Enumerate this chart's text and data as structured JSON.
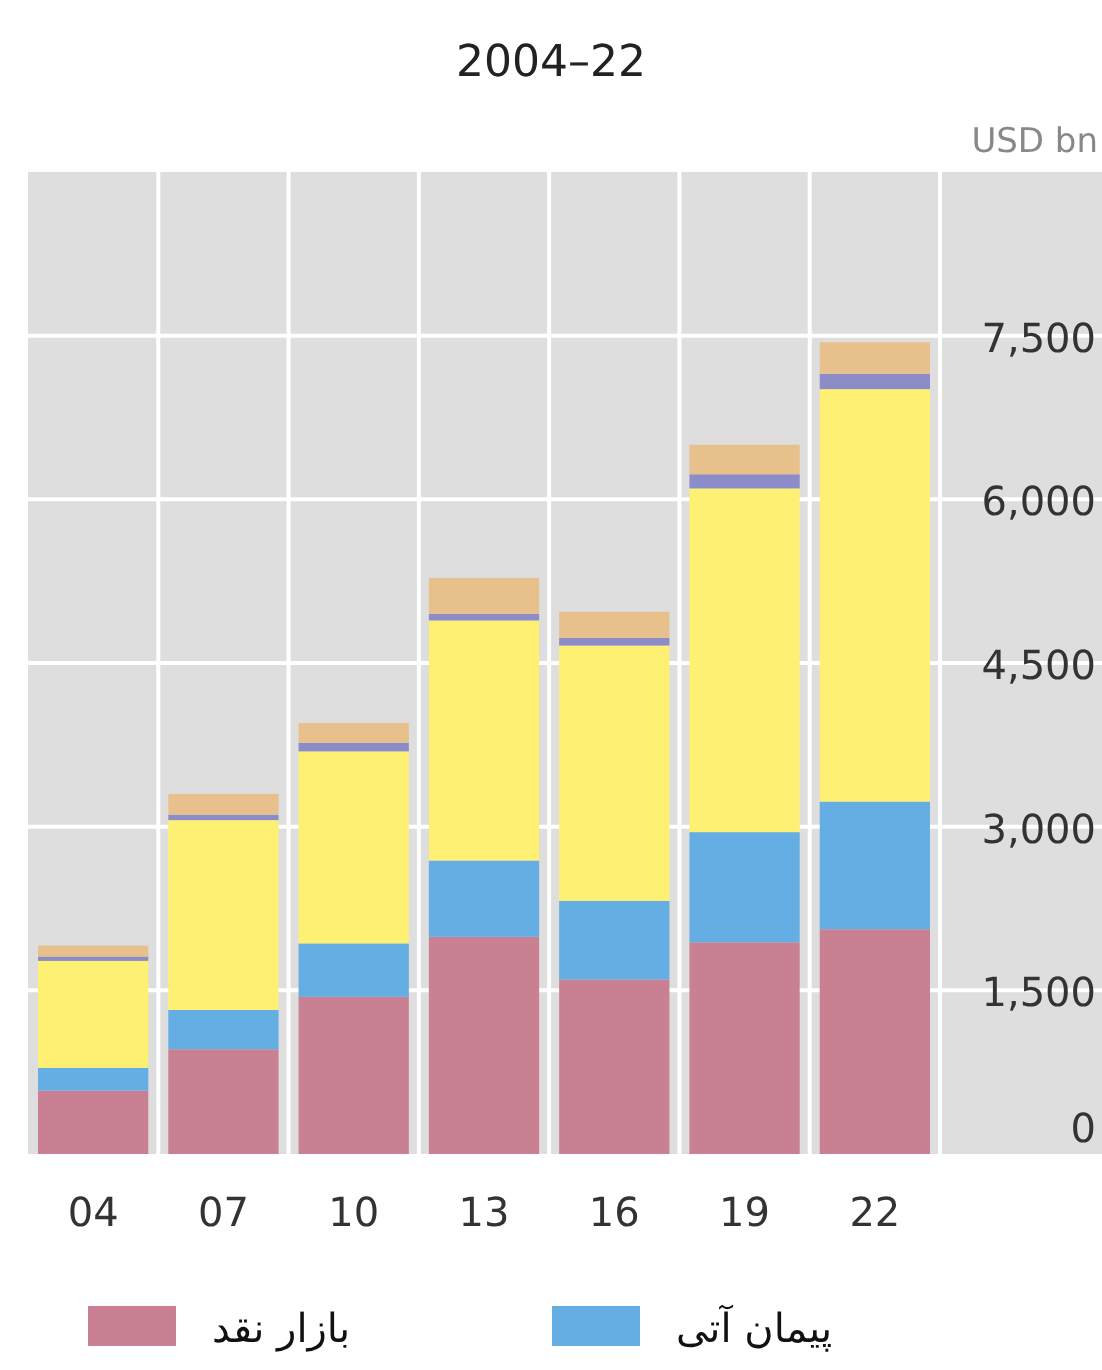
{
  "chart_data": {
    "type": "bar",
    "title": "2004–22",
    "ylabel": "USD bn",
    "stacked": true,
    "grid": true,
    "legend": "bottom",
    "categories": [
      "04",
      "07",
      "10",
      "13",
      "16",
      "19",
      "22"
    ],
    "series": [
      {
        "name": "بازار نقد",
        "color": "#c98093",
        "values": [
          580,
          960,
          1440,
          1990,
          1600,
          1940,
          2060
        ]
      },
      {
        "name": "پیمان آتی",
        "color": "#64aee4",
        "values": [
          210,
          360,
          490,
          700,
          720,
          1010,
          1170
        ]
      },
      {
        "color": "#fef072",
        "values": [
          980,
          1740,
          1760,
          2200,
          2340,
          3150,
          3780
        ]
      },
      {
        "color": "#8c8cc8",
        "values": [
          40,
          50,
          80,
          60,
          70,
          130,
          140
        ]
      },
      {
        "color": "#e8c08c",
        "values": [
          100,
          190,
          180,
          330,
          240,
          270,
          290
        ]
      }
    ],
    "ylim": [
      0,
      9000
    ],
    "yticks": [
      0,
      {
        "value": 1500,
        "label": "1,500"
      },
      {
        "value": 3000,
        "label": "3,000"
      },
      {
        "value": 4500,
        "label": "4,500"
      },
      {
        "value": 6000,
        "label": "6,000"
      },
      {
        "value": 7500,
        "label": "7,500"
      }
    ]
  }
}
